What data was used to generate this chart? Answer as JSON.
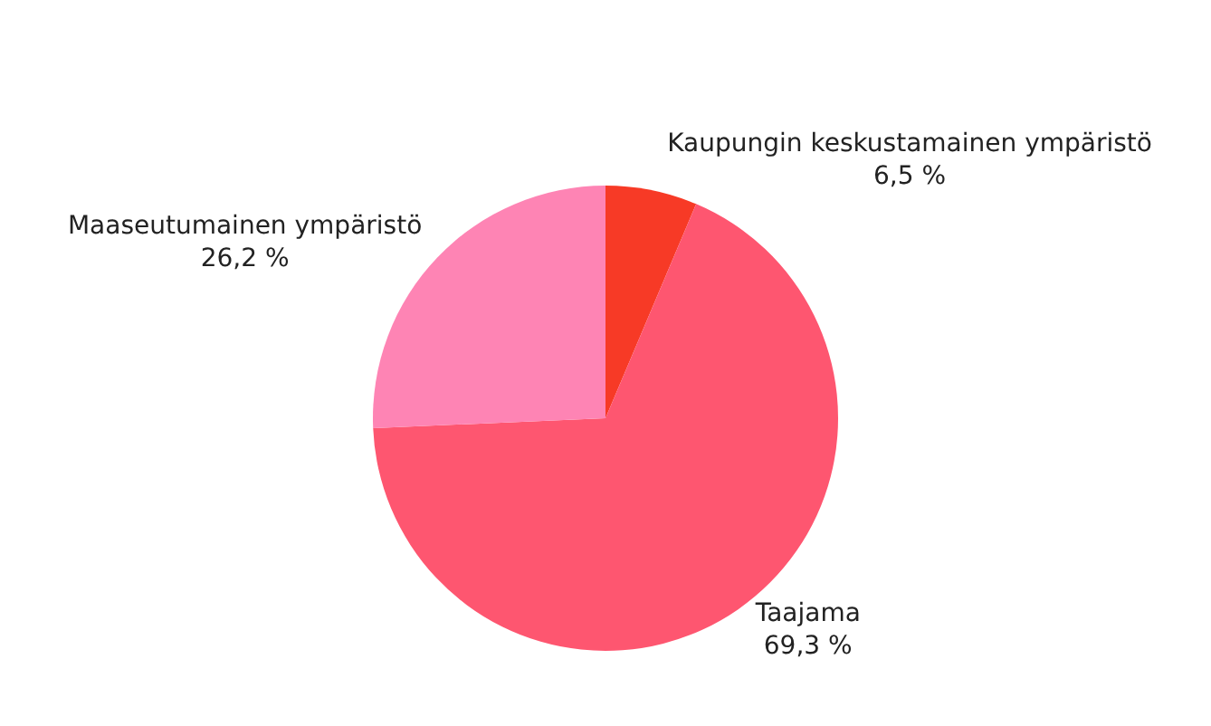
{
  "chart_data": {
    "type": "pie",
    "categories": [
      "Kaupungin keskustamainen ympäristö",
      "Taajama",
      "Maaseutumainen ympäristö"
    ],
    "values": [
      6.5,
      69.3,
      26.2
    ],
    "value_labels": [
      "6,5 %",
      "69,3 %",
      "26,2 %"
    ],
    "colors": [
      "#f73a26",
      "#fe5670",
      "#fe84b4"
    ],
    "legend": false
  }
}
